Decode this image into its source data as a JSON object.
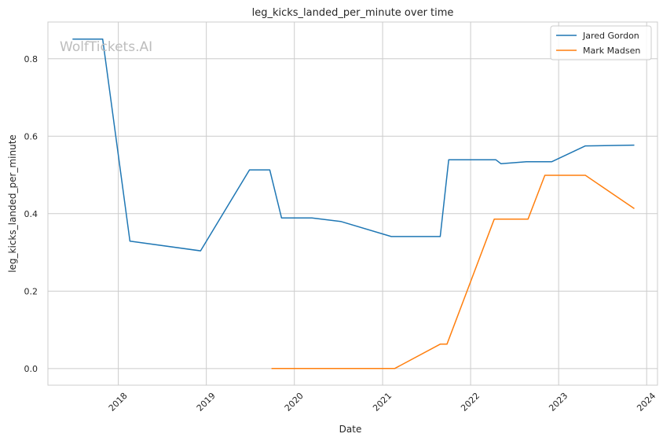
{
  "chart_data": {
    "type": "line",
    "title": "leg_kicks_landed_per_minute over time",
    "xlabel": "Date",
    "ylabel": "leg_kicks_landed_per_minute",
    "watermark": "WolfTickets.AI",
    "x_axis": "date",
    "xlim": [
      "2017-03-15",
      "2024-02-15"
    ],
    "ylim": [
      -0.043,
      0.895
    ],
    "yticks": [
      0.0,
      0.2,
      0.4,
      0.6,
      0.8
    ],
    "ytick_labels": [
      "0.0",
      "0.2",
      "0.4",
      "0.6",
      "0.8"
    ],
    "xticks": [
      "2018-01-01",
      "2019-01-01",
      "2020-01-01",
      "2021-01-01",
      "2022-01-01",
      "2023-01-01",
      "2024-01-01"
    ],
    "xtick_labels": [
      "2018",
      "2019",
      "2020",
      "2021",
      "2022",
      "2023",
      "2024"
    ],
    "grid": true,
    "legend_position": "top-right",
    "series": [
      {
        "name": "Jared Gordon",
        "color": "#1f77b4",
        "points": [
          [
            "2017-06-25",
            0.851
          ],
          [
            "2017-10-28",
            0.851
          ],
          [
            "2018-02-18",
            0.329
          ],
          [
            "2018-12-08",
            0.304
          ],
          [
            "2019-06-29",
            0.513
          ],
          [
            "2019-09-21",
            0.513
          ],
          [
            "2019-11-09",
            0.389
          ],
          [
            "2020-03-14",
            0.389
          ],
          [
            "2020-07-11",
            0.38
          ],
          [
            "2021-02-06",
            0.341
          ],
          [
            "2021-08-28",
            0.341
          ],
          [
            "2021-10-02",
            0.539
          ],
          [
            "2022-04-16",
            0.539
          ],
          [
            "2022-05-07",
            0.529
          ],
          [
            "2022-08-20",
            0.534
          ],
          [
            "2022-12-03",
            0.534
          ],
          [
            "2023-04-22",
            0.575
          ],
          [
            "2023-11-11",
            0.577
          ]
        ]
      },
      {
        "name": "Mark Madsen",
        "color": "#ff7f0e",
        "points": [
          [
            "2019-09-28",
            0.0
          ],
          [
            "2021-02-20",
            0.0
          ],
          [
            "2021-08-28",
            0.063
          ],
          [
            "2021-09-25",
            0.063
          ],
          [
            "2022-04-09",
            0.386
          ],
          [
            "2022-08-27",
            0.386
          ],
          [
            "2022-11-05",
            0.499
          ],
          [
            "2023-04-22",
            0.499
          ],
          [
            "2023-11-11",
            0.413
          ]
        ]
      }
    ]
  }
}
